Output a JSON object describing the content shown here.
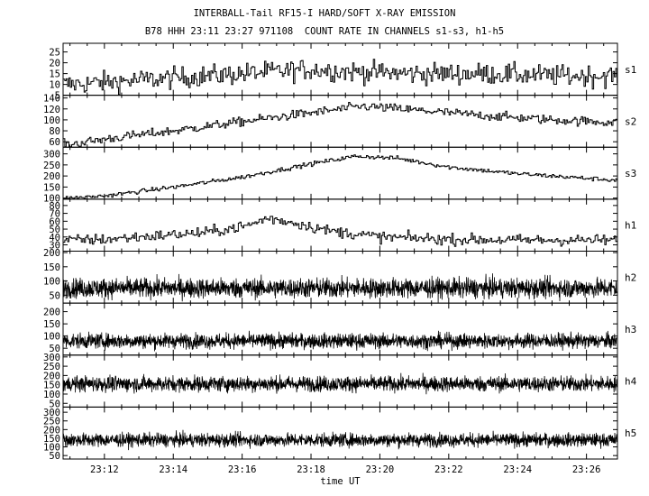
{
  "header": {
    "title": "INTERBALL-Tail RF15-I HARD/SOFT X-RAY EMISSION",
    "subtitle": "B78 HHH 23:11 23:27 971108  COUNT RATE IN CHANNELS s1-s3, h1-h5"
  },
  "chart_data": {
    "type": "line",
    "xlabel": "time UT",
    "x_ticks": [
      "23:12",
      "23:14",
      "23:16",
      "23:18",
      "23:20",
      "23:22",
      "23:24",
      "23:26"
    ],
    "x_tick_minutes": [
      12,
      14,
      16,
      18,
      20,
      22,
      24,
      26
    ],
    "xlim_minutes": [
      10.8,
      26.9
    ],
    "x_unit": "minutes after 23:00 UT",
    "grid": false,
    "panels": [
      {
        "name": "s1",
        "ylim": [
          5,
          29
        ],
        "ticks": [
          5,
          10,
          15,
          20,
          25
        ],
        "profile_x": [
          11,
          13,
          15,
          17,
          18,
          19,
          21,
          23,
          25,
          26.9
        ],
        "profile_y": [
          10,
          12,
          14,
          16,
          17,
          16,
          15,
          15,
          14,
          14
        ],
        "noise": 3.5
      },
      {
        "name": "s2",
        "ylim": [
          50,
          145
        ],
        "ticks": [
          60,
          80,
          100,
          120,
          140
        ],
        "profile_x": [
          11,
          12,
          14,
          16,
          18,
          19.5,
          21,
          23,
          25,
          26.9
        ],
        "profile_y": [
          55,
          65,
          80,
          97,
          113,
          125,
          118,
          108,
          100,
          95
        ],
        "noise": 6
      },
      {
        "name": "s3",
        "ylim": [
          95,
          330
        ],
        "ticks": [
          100,
          150,
          200,
          250,
          300
        ],
        "profile_x": [
          11,
          12,
          14,
          16,
          18,
          19.3,
          20.5,
          22,
          24,
          26.9
        ],
        "profile_y": [
          100,
          110,
          150,
          195,
          255,
          290,
          280,
          240,
          210,
          180
        ],
        "noise": 7
      },
      {
        "name": "h1",
        "ylim": [
          22,
          88
        ],
        "ticks": [
          30,
          40,
          50,
          60,
          70,
          80
        ],
        "profile_x": [
          11,
          12,
          13,
          15,
          16.2,
          16.7,
          17.5,
          18.5,
          20,
          22,
          24,
          26.9
        ],
        "profile_y": [
          36,
          37,
          40,
          46,
          55,
          64,
          58,
          48,
          40,
          37,
          36,
          36
        ],
        "noise": 5
      },
      {
        "name": "h2",
        "ylim": [
          22,
          205
        ],
        "ticks": [
          50,
          100,
          150,
          200
        ],
        "profile_x": [
          11,
          26.9
        ],
        "profile_y": [
          75,
          75
        ],
        "noise": 25
      },
      {
        "name": "h3",
        "ylim": [
          22,
          235
        ],
        "ticks": [
          50,
          100,
          150,
          200
        ],
        "profile_x": [
          11,
          26.9
        ],
        "profile_y": [
          80,
          80
        ],
        "noise": 22
      },
      {
        "name": "h4",
        "ylim": [
          30,
          310
        ],
        "ticks": [
          50,
          100,
          150,
          200,
          250,
          300
        ],
        "profile_x": [
          11,
          26.9
        ],
        "profile_y": [
          155,
          155
        ],
        "noise": 30
      },
      {
        "name": "h5",
        "ylim": [
          30,
          330
        ],
        "ticks": [
          50,
          100,
          150,
          200,
          250,
          300
        ],
        "profile_x": [
          11,
          26.9
        ],
        "profile_y": [
          140,
          140
        ],
        "noise": 28
      }
    ]
  }
}
